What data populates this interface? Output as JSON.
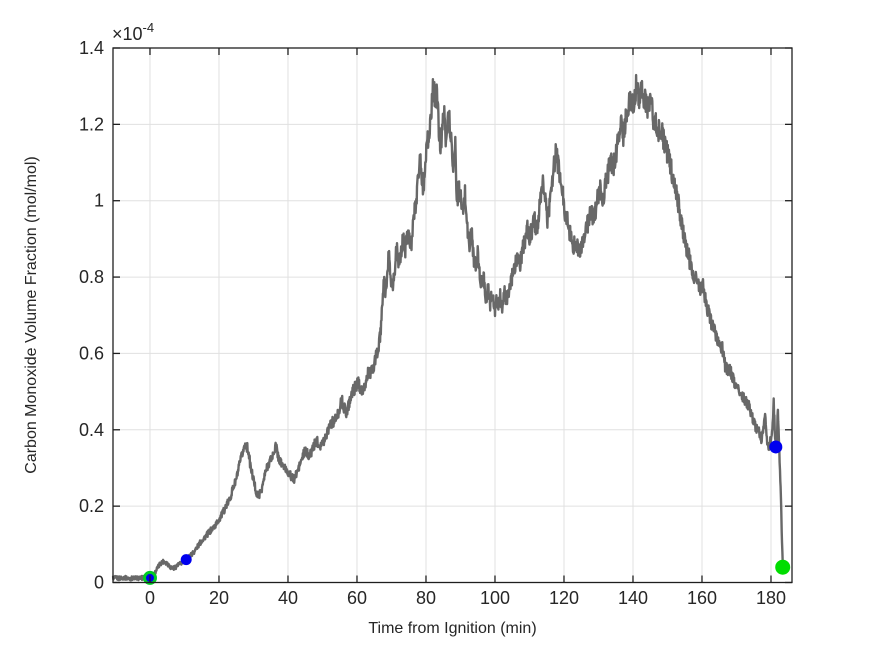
{
  "chart_data": {
    "type": "line",
    "title": "",
    "xlabel": "Time from Ignition (min)",
    "ylabel": "Carbon Monoxide Volume Fraction (mol/mol)",
    "y_axis_exponent": {
      "mantissa": "×10",
      "power": "-4"
    },
    "y_value_scale": "1e-4",
    "xlim": [
      -10.72,
      186.09
    ],
    "ylim": [
      0,
      1.4
    ],
    "x_ticks": [
      0,
      20,
      40,
      60,
      80,
      100,
      120,
      140,
      160,
      180
    ],
    "x_tick_labels": [
      "0",
      "20",
      "40",
      "60",
      "80",
      "100",
      "120",
      "140",
      "160",
      "180"
    ],
    "y_ticks": [
      0,
      0.2,
      0.4,
      0.6,
      0.8,
      1,
      1.2,
      1.4
    ],
    "y_tick_labels": [
      "0",
      "0.2",
      "0.4",
      "0.6",
      "0.8",
      "1",
      "1.2",
      "1.4"
    ],
    "grid": true,
    "colors": {
      "line": "#686868",
      "grid": "#e0e0e0",
      "axis": "#1f1f1f",
      "text": "#262626",
      "marker_blue": "#0000ee",
      "marker_green": "#00dd00"
    },
    "noise": {
      "dt": 0.1,
      "base": 0.005,
      "scale": 0.022
    },
    "series": [
      {
        "name": "CO volume fraction",
        "points": [
          [
            -10.7,
            0.012
          ],
          [
            -9,
            0.011
          ],
          [
            -7.5,
            0.013
          ],
          [
            -6,
            0.01
          ],
          [
            -4.5,
            0.012
          ],
          [
            -3,
            0.011
          ],
          [
            -1.5,
            0.013
          ],
          [
            0,
            0.012
          ],
          [
            1,
            0.018
          ],
          [
            2,
            0.035
          ],
          [
            3,
            0.05
          ],
          [
            4,
            0.056
          ],
          [
            5,
            0.05
          ],
          [
            6,
            0.04
          ],
          [
            7,
            0.038
          ],
          [
            8,
            0.045
          ],
          [
            9,
            0.05
          ],
          [
            10.5,
            0.06
          ],
          [
            11.5,
            0.068
          ],
          [
            12.5,
            0.078
          ],
          [
            13.5,
            0.09
          ],
          [
            15,
            0.11
          ],
          [
            16.5,
            0.125
          ],
          [
            18,
            0.14
          ],
          [
            19,
            0.15
          ],
          [
            20,
            0.165
          ],
          [
            21,
            0.18
          ],
          [
            22,
            0.2
          ],
          [
            23,
            0.215
          ],
          [
            24,
            0.245
          ],
          [
            25,
            0.27
          ],
          [
            26,
            0.31
          ],
          [
            27,
            0.345
          ],
          [
            27.7,
            0.365
          ],
          [
            28.5,
            0.345
          ],
          [
            29.2,
            0.3
          ],
          [
            30,
            0.27
          ],
          [
            31,
            0.228
          ],
          [
            31.8,
            0.232
          ],
          [
            32.6,
            0.252
          ],
          [
            33.5,
            0.29
          ],
          [
            34.5,
            0.315
          ],
          [
            35.5,
            0.33
          ],
          [
            36.5,
            0.36
          ],
          [
            37.3,
            0.325
          ],
          [
            38.2,
            0.31
          ],
          [
            39,
            0.3
          ],
          [
            40,
            0.29
          ],
          [
            41,
            0.276
          ],
          [
            41.7,
            0.27
          ],
          [
            42.5,
            0.285
          ],
          [
            43.5,
            0.31
          ],
          [
            44.9,
            0.345
          ],
          [
            45.7,
            0.336
          ],
          [
            46.4,
            0.333
          ],
          [
            47.3,
            0.355
          ],
          [
            48.3,
            0.372
          ],
          [
            49.2,
            0.36
          ],
          [
            50.1,
            0.365
          ],
          [
            51.2,
            0.39
          ],
          [
            52.2,
            0.417
          ],
          [
            53.2,
            0.421
          ],
          [
            54.2,
            0.432
          ],
          [
            55,
            0.46
          ],
          [
            55.6,
            0.477
          ],
          [
            56.3,
            0.455
          ],
          [
            57,
            0.447
          ],
          [
            58,
            0.48
          ],
          [
            58.9,
            0.503
          ],
          [
            59.6,
            0.512
          ],
          [
            60.3,
            0.524
          ],
          [
            61,
            0.51
          ],
          [
            61.8,
            0.496
          ],
          [
            62.5,
            0.52
          ],
          [
            63.2,
            0.55
          ],
          [
            64,
            0.548
          ],
          [
            64.6,
            0.557
          ],
          [
            65.2,
            0.58
          ],
          [
            65.8,
            0.6
          ],
          [
            66.4,
            0.623
          ],
          [
            66.9,
            0.66
          ],
          [
            67.4,
            0.725
          ],
          [
            67.8,
            0.8
          ],
          [
            68.2,
            0.762
          ],
          [
            68.7,
            0.79
          ],
          [
            69.2,
            0.858
          ],
          [
            69.8,
            0.8
          ],
          [
            70.4,
            0.772
          ],
          [
            71,
            0.83
          ],
          [
            71.6,
            0.88
          ],
          [
            72.2,
            0.832
          ],
          [
            72.8,
            0.862
          ],
          [
            73.4,
            0.9
          ],
          [
            74,
            0.872
          ],
          [
            74.6,
            0.93
          ],
          [
            75.2,
            0.902
          ],
          [
            75.8,
            0.882
          ],
          [
            76.4,
            0.95
          ],
          [
            77,
            0.99
          ],
          [
            77.6,
            1.05
          ],
          [
            78.2,
            1.118
          ],
          [
            78.7,
            1.072
          ],
          [
            79.2,
            1.03
          ],
          [
            79.8,
            1.1
          ],
          [
            80.3,
            1.18
          ],
          [
            80.8,
            1.14
          ],
          [
            81.3,
            1.22
          ],
          [
            81.8,
            1.262
          ],
          [
            82.2,
            1.31
          ],
          [
            82.7,
            1.242
          ],
          [
            83.2,
            1.28
          ],
          [
            83.7,
            1.192
          ],
          [
            84.2,
            1.14
          ],
          [
            84.7,
            1.19
          ],
          [
            85.2,
            1.228
          ],
          [
            85.7,
            1.172
          ],
          [
            86.2,
            1.2
          ],
          [
            86.8,
            1.218
          ],
          [
            87.4,
            1.142
          ],
          [
            88,
            1.092
          ],
          [
            88.5,
            1.14
          ],
          [
            89,
            0.992
          ],
          [
            89.5,
            1.032
          ],
          [
            90,
            1.012
          ],
          [
            90.7,
            0.962
          ],
          [
            91.3,
            1.02
          ],
          [
            92,
            0.93
          ],
          [
            92.6,
            0.872
          ],
          [
            93.2,
            0.92
          ],
          [
            93.8,
            0.852
          ],
          [
            94.4,
            0.822
          ],
          [
            95,
            0.86
          ],
          [
            95.6,
            0.8
          ],
          [
            96.2,
            0.782
          ],
          [
            96.8,
            0.802
          ],
          [
            97.4,
            0.742
          ],
          [
            98,
            0.77
          ],
          [
            98.6,
            0.732
          ],
          [
            99.2,
            0.76
          ],
          [
            99.8,
            0.712
          ],
          [
            100.4,
            0.732
          ],
          [
            101,
            0.722
          ],
          [
            101.6,
            0.752
          ],
          [
            102.2,
            0.722
          ],
          [
            102.8,
            0.762
          ],
          [
            103.4,
            0.732
          ],
          [
            104,
            0.76
          ],
          [
            104.7,
            0.79
          ],
          [
            105.4,
            0.812
          ],
          [
            106,
            0.84
          ],
          [
            106.6,
            0.86
          ],
          [
            107.3,
            0.832
          ],
          [
            108,
            0.872
          ],
          [
            108.7,
            0.9
          ],
          [
            109.3,
            0.93
          ],
          [
            110,
            0.902
          ],
          [
            110.7,
            0.922
          ],
          [
            111.4,
            0.95
          ],
          [
            112.1,
            0.922
          ],
          [
            112.8,
            0.97
          ],
          [
            113.4,
            1.01
          ],
          [
            114,
            1.05
          ],
          [
            114.6,
            1.0
          ],
          [
            115.2,
            0.95
          ],
          [
            115.8,
            0.99
          ],
          [
            116.4,
            1.04
          ],
          [
            117,
            1.08
          ],
          [
            117.7,
            1.13
          ],
          [
            118.3,
            1.092
          ],
          [
            119,
            1.05
          ],
          [
            119.6,
            1.02
          ],
          [
            120.2,
            0.972
          ],
          [
            121,
            0.95
          ],
          [
            121.8,
            0.912
          ],
          [
            122.6,
            0.872
          ],
          [
            123.4,
            0.9
          ],
          [
            124.2,
            0.872
          ],
          [
            124.8,
            0.862
          ],
          [
            125.6,
            0.9
          ],
          [
            126.4,
            0.92
          ],
          [
            127.2,
            0.95
          ],
          [
            128,
            0.97
          ],
          [
            128.8,
            0.952
          ],
          [
            129.6,
            1.0
          ],
          [
            130.4,
            1.03
          ],
          [
            131.2,
            1.002
          ],
          [
            132,
            1.04
          ],
          [
            132.8,
            1.072
          ],
          [
            133.4,
            1.11
          ],
          [
            134.2,
            1.082
          ],
          [
            135,
            1.12
          ],
          [
            135.8,
            1.16
          ],
          [
            136.4,
            1.2
          ],
          [
            137.2,
            1.172
          ],
          [
            138,
            1.22
          ],
          [
            138.8,
            1.25
          ],
          [
            139.4,
            1.27
          ],
          [
            140.2,
            1.242
          ],
          [
            141,
            1.31
          ],
          [
            141.8,
            1.272
          ],
          [
            142.6,
            1.3
          ],
          [
            143.4,
            1.262
          ],
          [
            144.2,
            1.24
          ],
          [
            145,
            1.268
          ],
          [
            145.8,
            1.222
          ],
          [
            146.6,
            1.2
          ],
          [
            147.4,
            1.182
          ],
          [
            148.2,
            1.19
          ],
          [
            149,
            1.152
          ],
          [
            150,
            1.12
          ],
          [
            151,
            1.09
          ],
          [
            152,
            1.04
          ],
          [
            153,
            1.0
          ],
          [
            154,
            0.95
          ],
          [
            155,
            0.9
          ],
          [
            156,
            0.86
          ],
          [
            157,
            0.82
          ],
          [
            158,
            0.8
          ],
          [
            158.8,
            0.782
          ],
          [
            159.6,
            0.772
          ],
          [
            160.3,
            0.79
          ],
          [
            161,
            0.742
          ],
          [
            161.7,
            0.712
          ],
          [
            162.4,
            0.692
          ],
          [
            163.1,
            0.672
          ],
          [
            163.8,
            0.655
          ],
          [
            164.5,
            0.64
          ],
          [
            165.2,
            0.625
          ],
          [
            165.9,
            0.615
          ],
          [
            166.6,
            0.572
          ],
          [
            167.3,
            0.556
          ],
          [
            168,
            0.565
          ],
          [
            168.7,
            0.54
          ],
          [
            169.4,
            0.525
          ],
          [
            170.1,
            0.512
          ],
          [
            170.8,
            0.5
          ],
          [
            171.5,
            0.49
          ],
          [
            172.2,
            0.485
          ],
          [
            173,
            0.47
          ],
          [
            173.8,
            0.46
          ],
          [
            174.5,
            0.432
          ],
          [
            175.2,
            0.415
          ],
          [
            175.9,
            0.4
          ],
          [
            176.6,
            0.392
          ],
          [
            177.2,
            0.37
          ],
          [
            177.8,
            0.412
          ],
          [
            178.3,
            0.44
          ],
          [
            178.8,
            0.372
          ],
          [
            179.3,
            0.355
          ],
          [
            179.8,
            0.375
          ],
          [
            180.3,
            0.4
          ],
          [
            180.8,
            0.47
          ],
          [
            181.2,
            0.38
          ],
          [
            181.6,
            0.355
          ],
          [
            182,
            0.45
          ],
          [
            182.3,
            0.38
          ],
          [
            182.6,
            0.3
          ],
          [
            182.9,
            0.22
          ],
          [
            183.1,
            0.14
          ],
          [
            183.3,
            0.08
          ],
          [
            183.45,
            0.04
          ]
        ]
      }
    ],
    "markers": [
      {
        "name": "start-marker",
        "t": 0,
        "v": 0.012,
        "r": 5.5,
        "fill": "#0000ee",
        "stroke": "#00cc22",
        "stroke_width": 3
      },
      {
        "name": "early-marker",
        "t": 10.5,
        "v": 0.06,
        "r": 5.5,
        "fill": "#0000ee",
        "stroke": "none",
        "stroke_width": 0
      },
      {
        "name": "late-marker",
        "t": 181.4,
        "v": 0.355,
        "r": 6.5,
        "fill": "#0000ee",
        "stroke": "none",
        "stroke_width": 0
      },
      {
        "name": "end-marker",
        "t": 183.4,
        "v": 0.04,
        "r": 7.5,
        "fill": "#00dd00",
        "stroke": "none",
        "stroke_width": 0
      }
    ]
  }
}
